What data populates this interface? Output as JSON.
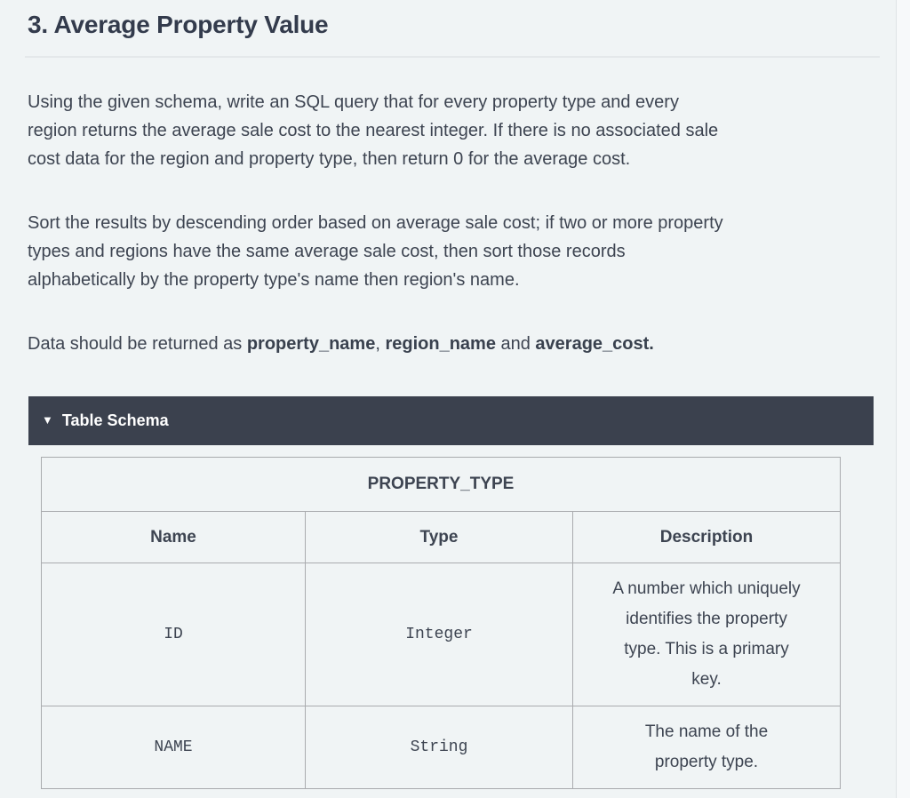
{
  "page": {
    "title": "3. Average Property Value"
  },
  "problem": {
    "paragraph1": "Using the given schema, write an SQL query that for every property type and every\nregion returns the average sale cost to the nearest integer. If there is no associated sale\ncost data for the region and property type, then return 0 for the average cost.",
    "paragraph2": "Sort the results by descending order based on average sale cost; if two or more property\ntypes and regions have the same average sale cost, then sort those records\nalphabetically by the property type's name then region's name.",
    "returns_segments": [
      {
        "text": "Data should be returned as ",
        "bold": false
      },
      {
        "text": "property_name",
        "bold": true
      },
      {
        "text": ", ",
        "bold": false
      },
      {
        "text": "region_name",
        "bold": true
      },
      {
        "text": " and ",
        "bold": false
      },
      {
        "text": "average_cost.",
        "bold": true
      }
    ]
  },
  "schema_panel": {
    "collapse_icon": "▼",
    "title": "Table Schema"
  },
  "schema_table": {
    "table_name": "PROPERTY_TYPE",
    "columns": [
      "Name",
      "Type",
      "Description"
    ],
    "rows": [
      {
        "name": "ID",
        "type": "Integer",
        "description": "A number which uniquely\nidentifies the property\ntype. This is a primary\nkey."
      },
      {
        "name": "NAME",
        "type": "String",
        "description": "The name of the\nproperty type."
      }
    ]
  },
  "colors": {
    "page_background": "#f0f4f5",
    "panel_header_background": "#3b414e",
    "panel_header_text": "#ffffff",
    "text": "#3d4451",
    "table_border": "#a9abae"
  }
}
